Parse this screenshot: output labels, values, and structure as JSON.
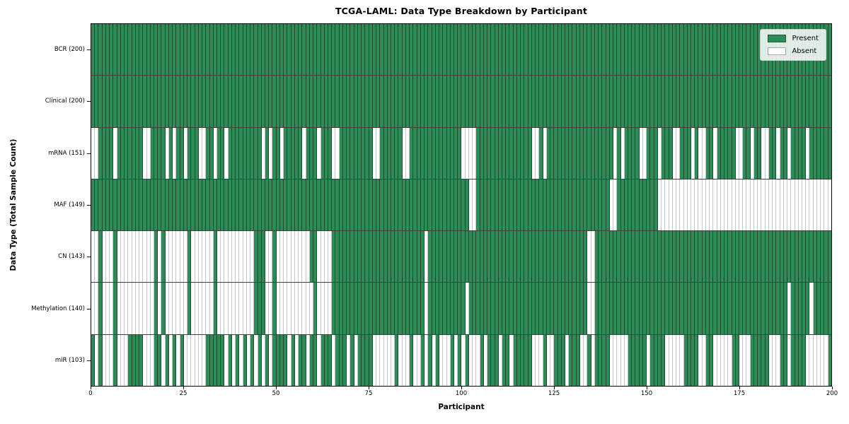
{
  "figure": {
    "title": "TCGA-LAML: Data Type Breakdown by Participant",
    "xlabel": "Participant",
    "ylabel": "Data Type (Total Sample Count)"
  },
  "legend": {
    "items": [
      {
        "label": "Present",
        "color": "#2e8b57"
      },
      {
        "label": "Absent",
        "color": "#ffffff"
      }
    ]
  },
  "chart_data": {
    "type": "heatmap",
    "title": "TCGA-LAML: Data Type Breakdown by Participant",
    "xlabel": "Participant",
    "ylabel": "Data Type (Total Sample Count)",
    "legend_position": "upper right",
    "grid": false,
    "n_participants": 200,
    "x_axis": {
      "min": 0,
      "max": 200,
      "ticks": [
        0,
        25,
        50,
        75,
        100,
        125,
        150,
        175,
        200
      ]
    },
    "value_encoding": {
      "1": "Present",
      "0": "Absent"
    },
    "colors": {
      "present": "#2e8b57",
      "absent": "#ffffff",
      "cell_edge": "rgba(0,0,0,0.45)"
    },
    "rows": [
      {
        "key": "bcr",
        "label": "BCR",
        "total": 200,
        "display": "BCR (200)",
        "bits": "11111111111111111111111111111111111111111111111111111111111111111111111111111111111111111111111111111111111111111111111111111111111111111111111111111111111111111111111111111111111111111111111111111111"
      },
      {
        "key": "clinical",
        "label": "Clinical",
        "total": 200,
        "display": "Clinical (200)",
        "bits": "11111111111111111111111111111111111111111111111111111111111111111111111111111111111111111111111111111111111111111111111111111111111111111111111111111111111111111111111111111111111111111111111111111111"
      },
      {
        "key": "mrna",
        "label": "mRNA",
        "total": 151,
        "display": "mRNA (151)",
        "bits": "00111101111111001111010110111001101101111111110101101111101110111001111111110011111100111111111111110000111111111111111001011111111111111111101011110011101110011101001101111100110110011011011110111111"
      },
      {
        "key": "maf",
        "label": "MAF",
        "total": 149,
        "display": "MAF (149)",
        "bits": "11111111111111111111111111111111111111111111111111111111111111111111111111111111111111111111111111111100111111111111111111111111111111111111001111111111100000000000000000000000000000000000000000000000"
      },
      {
        "key": "cn",
        "label": "CN",
        "total": 143,
        "display": "CN (143)",
        "bits": "00100010000000000101000000100000010000000000111001000000000110000111111111111111111111111101111111111111111111111111111111111111111111001111111111111111111111111111111111111111111111111111111111111111"
      },
      {
        "key": "methylation",
        "label": "Methylation",
        "total": 140,
        "display": "Methylation (140)",
        "bits": "00100010000000000101000000100000010000000000111001000000000010000111111111111111111111111101111111111011111111111111111111111111111111001111111111111111111111111111111111111111111111111111011111011111"
      },
      {
        "key": "mir",
        "label": "miR",
        "total": 103,
        "display": "miR (103)",
        "bits": "10100010001111000110101010000001111101010101010101111010110110111011101011110000001000100101010001010100010111011011111000100111011100101111000001111101111000001111001100000110001111100011011110000001"
      }
    ]
  }
}
